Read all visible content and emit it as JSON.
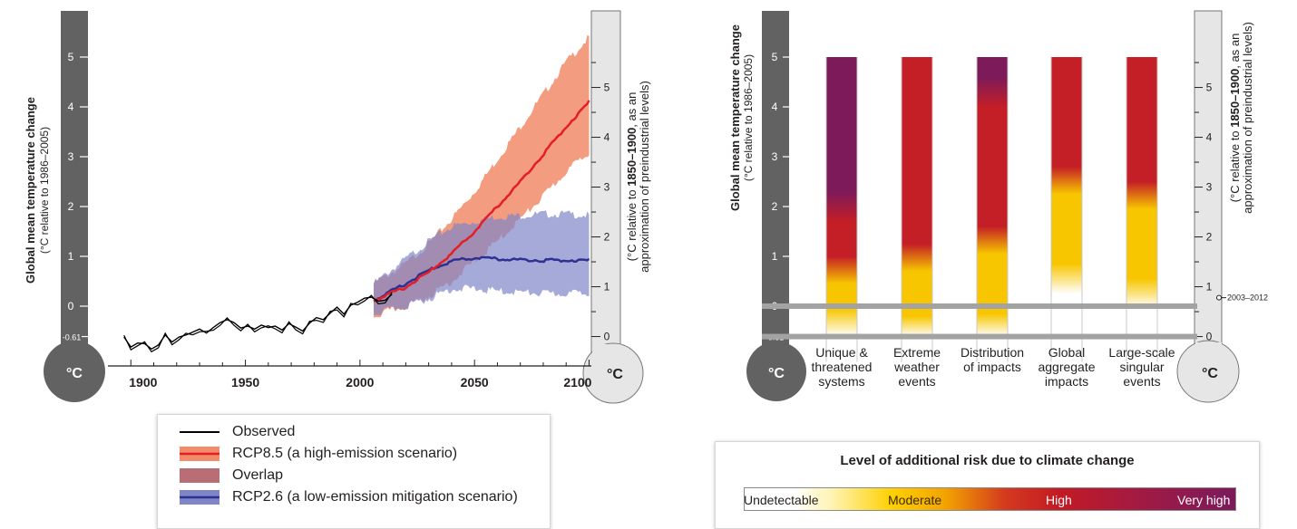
{
  "chart_data": [
    {
      "type": "line",
      "ylabel_left_bold": "Global mean temperature change",
      "ylabel_left_sub": "(°C relative to 1986–2005)",
      "ylabel_right_prefix": "(°C relative to ",
      "ylabel_right_bold": "1850–1900",
      "ylabel_right_suffix": ", as an",
      "ylabel_right_line2": "approximation of preindustrial levels)",
      "unit_symbol": "°C",
      "x_ticks": [
        "1900",
        "1950",
        "2000",
        "2050",
        "2100"
      ],
      "xlim": [
        1890,
        2101
      ],
      "ylim_left": [
        -0.8,
        5.8
      ],
      "left_ticks": [
        "0",
        "1",
        "2",
        "3",
        "4",
        "5"
      ],
      "left_extra_tick": "-0.61",
      "right_ticks": [
        "0",
        "1",
        "2",
        "3",
        "4",
        "5"
      ],
      "series": [
        {
          "name": "Observed",
          "color": "#000000",
          "x": [
            1897,
            1900,
            1903,
            1906,
            1909,
            1912,
            1915,
            1918,
            1921,
            1924,
            1927,
            1930,
            1933,
            1936,
            1939,
            1942,
            1945,
            1948,
            1951,
            1954,
            1957,
            1960,
            1963,
            1966,
            1969,
            1972,
            1975,
            1978,
            1981,
            1984,
            1987,
            1990,
            1993,
            1996,
            1999,
            2002,
            2005,
            2008,
            2011,
            2014
          ],
          "y": [
            -0.62,
            -0.82,
            -0.74,
            -0.75,
            -0.86,
            -0.78,
            -0.58,
            -0.72,
            -0.62,
            -0.58,
            -0.52,
            -0.46,
            -0.54,
            -0.43,
            -0.33,
            -0.27,
            -0.33,
            -0.44,
            -0.4,
            -0.46,
            -0.38,
            -0.43,
            -0.4,
            -0.48,
            -0.35,
            -0.42,
            -0.5,
            -0.34,
            -0.23,
            -0.27,
            -0.14,
            -0.02,
            -0.16,
            0.02,
            0.08,
            0.16,
            0.18,
            0.1,
            0.12,
            0.24
          ]
        },
        {
          "name": "RCP8.5 (a high-emission scenario)",
          "color": "#e41e25",
          "band_color": "#f28b6a",
          "x": [
            2006,
            2020,
            2030,
            2040,
            2050,
            2060,
            2070,
            2080,
            2090,
            2100
          ],
          "y": [
            0.12,
            0.38,
            0.68,
            1.05,
            1.5,
            2.0,
            2.5,
            3.05,
            3.6,
            4.1
          ],
          "lower": [
            -0.2,
            0.0,
            0.2,
            0.5,
            0.9,
            1.3,
            1.75,
            2.2,
            2.7,
            3.1
          ],
          "upper": [
            0.45,
            0.85,
            1.25,
            1.75,
            2.3,
            2.95,
            3.6,
            4.25,
            4.9,
            5.4
          ]
        },
        {
          "name": "RCP2.6 (a low-emission mitigation scenario)",
          "color": "#2e3192",
          "band_color": "#7f86c7",
          "x": [
            2006,
            2020,
            2030,
            2040,
            2050,
            2060,
            2070,
            2080,
            2090,
            2100
          ],
          "y": [
            0.12,
            0.45,
            0.72,
            0.9,
            0.97,
            0.95,
            0.93,
            0.92,
            0.92,
            0.92
          ],
          "lower": [
            -0.15,
            0.0,
            0.15,
            0.35,
            0.35,
            0.3,
            0.28,
            0.25,
            0.25,
            0.28
          ],
          "upper": [
            0.45,
            0.95,
            1.3,
            1.6,
            1.7,
            1.8,
            1.82,
            1.85,
            1.85,
            1.82
          ]
        }
      ],
      "overlap_name": "Overlap",
      "overlap_color": "#b96d74"
    },
    {
      "type": "bar",
      "ylabel_left_bold": "Global mean temperature change",
      "ylabel_left_sub": "(°C relative to 1986–2005)",
      "ylabel_right_prefix": "(°C relative to ",
      "ylabel_right_bold": "1850–1900",
      "ylabel_right_suffix": ", as an",
      "ylabel_right_line2": "approximation of preindustrial levels)",
      "unit_symbol": "°C",
      "categories": [
        [
          "Unique &",
          "threatened",
          "systems"
        ],
        [
          "Extreme",
          "weather",
          "events"
        ],
        [
          "Distribution",
          "of impacts"
        ],
        [
          "Global",
          "aggregate",
          "impacts"
        ],
        [
          "Large-scale",
          "singular",
          "events"
        ]
      ],
      "values": [
        5,
        5,
        5,
        5,
        5
      ],
      "ylim_left": [
        -0.8,
        5.8
      ],
      "left_ticks": [
        "0",
        "1",
        "2",
        "3",
        "4",
        "5"
      ],
      "left_extra_tick": "-0.61",
      "right_ticks": [
        "0",
        "1",
        "2",
        "3",
        "4",
        "5"
      ],
      "annotation": "2003–2012",
      "annotation_value": 0.78,
      "risk_transitions": [
        {
          "moderate": -0.3,
          "high": 0.9,
          "very_high": 2.0
        },
        {
          "moderate": -0.45,
          "high": 1.15,
          "very_high": null
        },
        {
          "moderate": -0.4,
          "high": 1.5,
          "very_high": 4.3
        },
        {
          "moderate": 0.6,
          "high": 2.7,
          "very_high": null
        },
        {
          "moderate": 0.3,
          "high": 2.4,
          "very_high": null
        }
      ]
    }
  ],
  "legend": {
    "items": [
      {
        "label": "Observed",
        "kind": "line",
        "color": "#000000"
      },
      {
        "label": "RCP8.5 (a high-emission scenario)",
        "kind": "band-line",
        "color": "#e41e25",
        "band": "#f28b6a"
      },
      {
        "label": "Overlap",
        "kind": "box",
        "color": "#b96d74"
      },
      {
        "label": "RCP2.6 (a low-emission mitigation scenario)",
        "kind": "band-line",
        "color": "#2e3192",
        "band": "#7f86c7"
      }
    ]
  },
  "risk_legend": {
    "title": "Level of additional risk due to climate change",
    "levels": [
      "Undetectable",
      "Moderate",
      "High",
      "Very high"
    ]
  },
  "colors": {
    "thermo_dark": "#636262",
    "thermo_light": "#e6e6e6",
    "undetectable": "#ffffff",
    "moderate": "#f7c600",
    "high": "#c41e26",
    "very_high": "#7c1a5a"
  }
}
